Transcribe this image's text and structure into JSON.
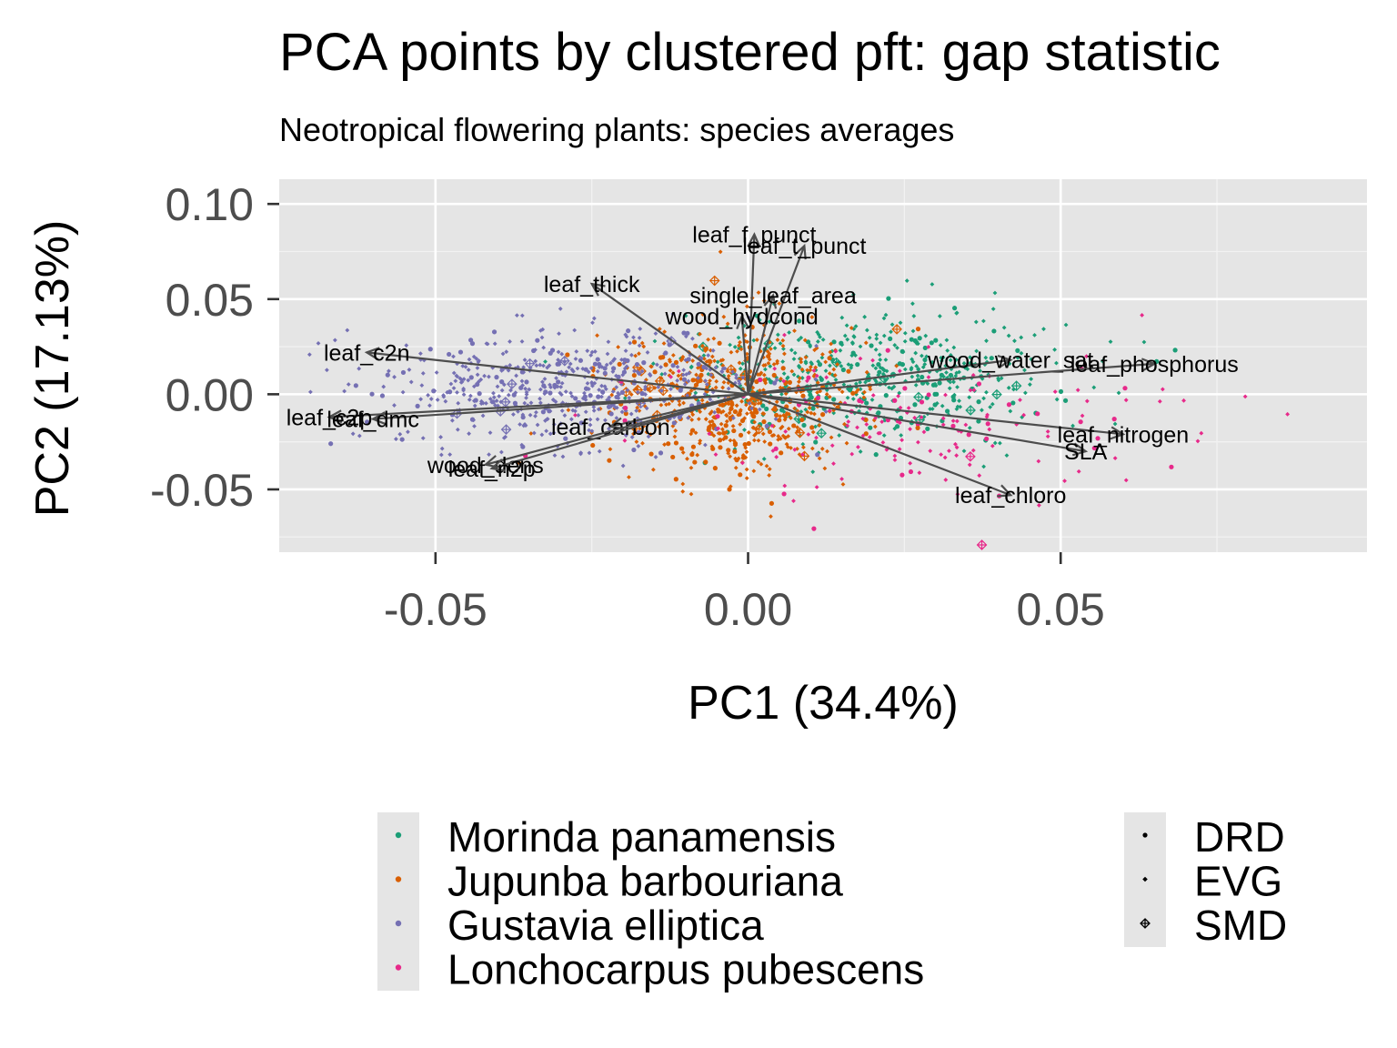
{
  "chart_data": {
    "type": "scatter",
    "title": "PCA points by clustered pft: gap statistic",
    "subtitle": "Neotropical flowering plants: species averages",
    "xlabel": "PC1 (34.4%)",
    "ylabel": "PC2 (17.13%)",
    "xlim": [
      -0.075,
      0.099
    ],
    "ylim": [
      -0.083,
      0.113
    ],
    "x_ticks": [
      -0.05,
      0.0,
      0.05
    ],
    "x_tick_labels": [
      "-0.05",
      "0.00",
      "0.05"
    ],
    "y_ticks": [
      -0.05,
      0.0,
      0.05,
      0.1
    ],
    "y_tick_labels": [
      "-0.05",
      "0.00",
      "0.05",
      "0.10"
    ],
    "grid": true,
    "legend_position": "bottom",
    "color_legend": [
      {
        "name": "Morinda panamensis",
        "color": "#1b9e77"
      },
      {
        "name": "Jupunba barbouriana",
        "color": "#d95f02"
      },
      {
        "name": "Gustavia elliptica",
        "color": "#7570b3"
      },
      {
        "name": "Lonchocarpus pubescens",
        "color": "#e7298a"
      }
    ],
    "shape_legend": [
      {
        "name": "DRD",
        "shape": "dot"
      },
      {
        "name": "EVG",
        "shape": "small-diamond"
      },
      {
        "name": "SMD",
        "shape": "crossed-diamond"
      }
    ],
    "loadings": [
      {
        "name": "leaf_f_punct",
        "x": 0.001,
        "y": 0.084
      },
      {
        "name": "leaf_t_punct",
        "x": 0.009,
        "y": 0.078
      },
      {
        "name": "leaf_thick",
        "x": -0.025,
        "y": 0.058
      },
      {
        "name": "single_leaf_area",
        "x": 0.004,
        "y": 0.052
      },
      {
        "name": "wood_hydcond",
        "x": -0.001,
        "y": 0.041
      },
      {
        "name": "leaf_c2n",
        "x": -0.061,
        "y": 0.022
      },
      {
        "name": "leaf_c2p",
        "x": -0.067,
        "y": -0.012
      },
      {
        "name": "leaf_dmc",
        "x": -0.06,
        "y": -0.013
      },
      {
        "name": "leaf_carbon",
        "x": -0.022,
        "y": -0.017
      },
      {
        "name": "wood_dens",
        "x": -0.042,
        "y": -0.037
      },
      {
        "name": "leaf_n2p",
        "x": -0.041,
        "y": -0.039
      },
      {
        "name": "wood_water_sat",
        "x": 0.042,
        "y": 0.018
      },
      {
        "name": "leaf_phosphorus",
        "x": 0.065,
        "y": 0.016
      },
      {
        "name": "leaf_nitrogen",
        "x": 0.06,
        "y": -0.021
      },
      {
        "name": "SLA",
        "x": 0.054,
        "y": -0.03
      },
      {
        "name": "leaf_chloro",
        "x": 0.042,
        "y": -0.053
      }
    ],
    "clusters": [
      {
        "name": "Morinda panamensis",
        "center": [
          0.02,
          0.01
        ],
        "spread": [
          0.015,
          0.017
        ],
        "n": 520
      },
      {
        "name": "Jupunba barbouriana",
        "center": [
          -0.002,
          -0.003
        ],
        "spread": [
          0.01,
          0.02
        ],
        "n": 600
      },
      {
        "name": "Gustavia elliptica",
        "center": [
          -0.028,
          0.003
        ],
        "spread": [
          0.015,
          0.015
        ],
        "n": 560
      },
      {
        "name": "Lonchocarpus pubescens",
        "center": [
          0.025,
          -0.012
        ],
        "spread": [
          0.02,
          0.02
        ],
        "n": 170
      }
    ]
  }
}
